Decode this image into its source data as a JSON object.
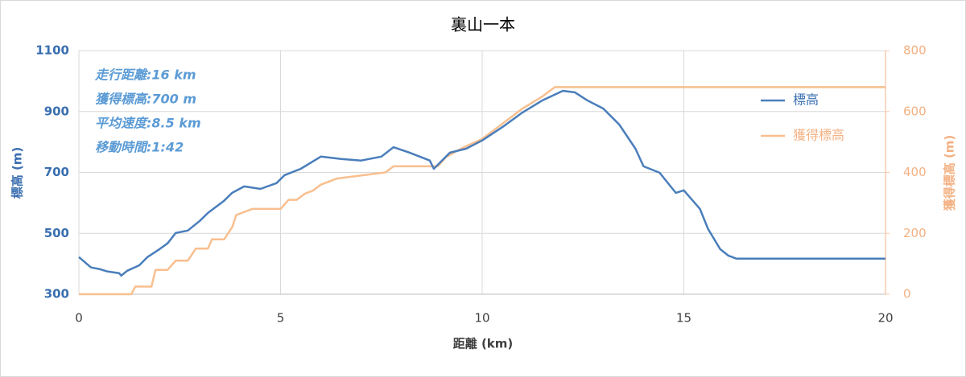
{
  "chart_data": {
    "type": "line",
    "title": "裏山一本",
    "xlabel": "距離 (km)",
    "ylabel": "標高 (m)",
    "y2label": "獲得標高 (m)",
    "annotations": [
      "走行距離:16 km",
      "獲得標高:700 m",
      "平均速度:8.5 km",
      "移動時間:1:42"
    ],
    "xlim": [
      0,
      20
    ],
    "xticks": [
      0,
      5,
      10,
      15,
      20
    ],
    "ylim": [
      300,
      1100
    ],
    "yticks": [
      300,
      500,
      700,
      900,
      1100
    ],
    "y2lim": [
      0,
      800
    ],
    "y2ticks": [
      0,
      200,
      400,
      600,
      800
    ],
    "grid": true,
    "legend": "right",
    "series": [
      {
        "name": "標高",
        "color": "#4a7ebb",
        "x": [
          0,
          0.3,
          0.5,
          0.7,
          1.0,
          1.05,
          1.2,
          1.5,
          1.7,
          2.0,
          2.2,
          2.4,
          2.7,
          3.0,
          3.2,
          3.6,
          3.8,
          4.1,
          4.5,
          4.9,
          5.1,
          5.5,
          6.0,
          6.5,
          7.0,
          7.5,
          7.8,
          8.2,
          8.7,
          8.8,
          9.2,
          9.6,
          10.0,
          10.5,
          11.0,
          11.5,
          12.0,
          12.3,
          12.6,
          13.0,
          13.4,
          13.8,
          14.0,
          14.4,
          14.8,
          15.0,
          15.4,
          15.6,
          15.9,
          16.1,
          16.3,
          20
        ],
        "values": [
          422,
          388,
          383,
          375,
          369,
          361,
          377,
          395,
          422,
          448,
          467,
          501,
          509,
          541,
          567,
          607,
          633,
          654,
          646,
          665,
          691,
          712,
          752,
          744,
          739,
          752,
          783,
          765,
          739,
          712,
          765,
          778,
          805,
          849,
          897,
          937,
          968,
          963,
          937,
          910,
          857,
          778,
          720,
          699,
          633,
          641,
          580,
          514,
          448,
          427,
          417,
          417
        ]
      },
      {
        "name": "獲得標高",
        "color": "#f8bf8f",
        "axis": "y2",
        "x": [
          0,
          1.3,
          1.4,
          1.8,
          1.9,
          2.2,
          2.4,
          2.7,
          2.9,
          3.2,
          3.3,
          3.6,
          3.8,
          3.9,
          4.3,
          5.0,
          5.2,
          5.4,
          5.6,
          5.8,
          6.0,
          6.4,
          7.0,
          7.6,
          7.8,
          8.9,
          9.1,
          9.5,
          10.0,
          10.5,
          11.0,
          11.5,
          11.8,
          12.0,
          20
        ],
        "values": [
          0,
          0,
          25,
          25,
          80,
          80,
          110,
          110,
          150,
          150,
          180,
          180,
          220,
          260,
          280,
          280,
          310,
          310,
          330,
          340,
          360,
          380,
          390,
          400,
          420,
          420,
          450,
          480,
          510,
          560,
          610,
          650,
          680,
          680,
          680
        ]
      }
    ]
  }
}
